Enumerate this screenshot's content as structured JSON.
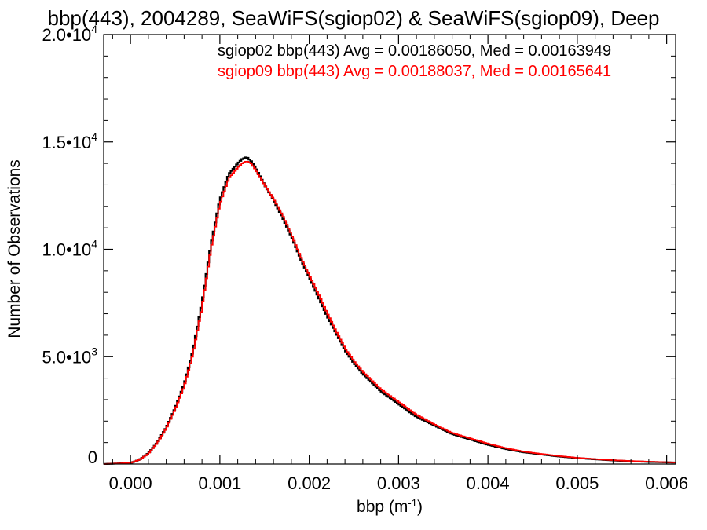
{
  "chart_data": {
    "type": "line",
    "title": "bbp(443), 2004289, SeaWiFS(sgiop02) & SeaWiFS(sgiop09), Deep",
    "xlabel": "bbp (m",
    "xlabel_sup": "-1",
    "xlabel_suffix": ")",
    "ylabel": "Number of Observations",
    "xlim": [
      -0.0003,
      0.0061
    ],
    "ylim": [
      0,
      20000
    ],
    "grid": false,
    "legend_position": "top-right",
    "x_ticks": [
      {
        "value": 0.0,
        "label": "0.000"
      },
      {
        "value": 0.001,
        "label": "0.001"
      },
      {
        "value": 0.002,
        "label": "0.002"
      },
      {
        "value": 0.003,
        "label": "0.003"
      },
      {
        "value": 0.004,
        "label": "0.004"
      },
      {
        "value": 0.005,
        "label": "0.005"
      },
      {
        "value": 0.006,
        "label": "0.006"
      }
    ],
    "y_ticks": [
      {
        "value": 0,
        "label": "0",
        "exp": ""
      },
      {
        "value": 5000,
        "label": "5.0•10",
        "exp": "3"
      },
      {
        "value": 10000,
        "label": "1.0•10",
        "exp": "4"
      },
      {
        "value": 15000,
        "label": "1.5•10",
        "exp": "4"
      },
      {
        "value": 20000,
        "label": "2.0•10",
        "exp": "4"
      }
    ],
    "series": [
      {
        "name": "sgiop02 bbp(443) Avg = 0.00186050, Med = 0.00163949",
        "color": "#000000",
        "x": [
          -0.0003,
          0.0,
          0.0001,
          0.0002,
          0.0003,
          0.0004,
          0.0005,
          0.0006,
          0.0007,
          0.0008,
          0.0009,
          0.001,
          0.0011,
          0.0012,
          0.00125,
          0.0013,
          0.00135,
          0.0014,
          0.0015,
          0.0016,
          0.0017,
          0.0018,
          0.0019,
          0.002,
          0.0021,
          0.0022,
          0.0023,
          0.0024,
          0.0025,
          0.0026,
          0.0027,
          0.0028,
          0.0029,
          0.003,
          0.0032,
          0.0034,
          0.0036,
          0.0038,
          0.004,
          0.0042,
          0.0044,
          0.0046,
          0.0048,
          0.005,
          0.0052,
          0.0054,
          0.0056,
          0.0058,
          0.006,
          0.0061
        ],
        "y": [
          0,
          50,
          200,
          500,
          1000,
          1700,
          2600,
          3700,
          5300,
          7500,
          10200,
          12300,
          13500,
          14000,
          14200,
          14300,
          14100,
          13800,
          13000,
          12300,
          11500,
          10600,
          9600,
          8700,
          7800,
          6900,
          6100,
          5300,
          4700,
          4200,
          3800,
          3400,
          3100,
          2800,
          2200,
          1800,
          1400,
          1150,
          900,
          700,
          550,
          450,
          350,
          280,
          220,
          170,
          130,
          100,
          80,
          70
        ]
      },
      {
        "name": "sgiop09 bbp(443) Avg = 0.00188037, Med = 0.00165641",
        "color": "#ff0000",
        "x": [
          -0.0003,
          0.0,
          0.0001,
          0.0002,
          0.0003,
          0.0004,
          0.0005,
          0.0006,
          0.0007,
          0.0008,
          0.0009,
          0.001,
          0.0011,
          0.0012,
          0.00125,
          0.0013,
          0.00135,
          0.0014,
          0.0015,
          0.0016,
          0.0017,
          0.0018,
          0.0019,
          0.002,
          0.0021,
          0.0022,
          0.0023,
          0.0024,
          0.0025,
          0.0026,
          0.0027,
          0.0028,
          0.0029,
          0.003,
          0.0032,
          0.0034,
          0.0036,
          0.0038,
          0.004,
          0.0042,
          0.0044,
          0.0046,
          0.0048,
          0.005,
          0.0052,
          0.0054,
          0.0056,
          0.0058,
          0.006,
          0.0061
        ],
        "y": [
          0,
          50,
          200,
          480,
          980,
          1650,
          2550,
          3600,
          5150,
          7300,
          10000,
          12100,
          13300,
          13800,
          14000,
          14100,
          14000,
          13700,
          13000,
          12350,
          11600,
          10700,
          9700,
          8800,
          7950,
          7050,
          6200,
          5400,
          4800,
          4300,
          3900,
          3500,
          3200,
          2900,
          2300,
          1850,
          1450,
          1200,
          950,
          740,
          580,
          470,
          370,
          290,
          230,
          180,
          140,
          110,
          85,
          75
        ]
      }
    ]
  }
}
